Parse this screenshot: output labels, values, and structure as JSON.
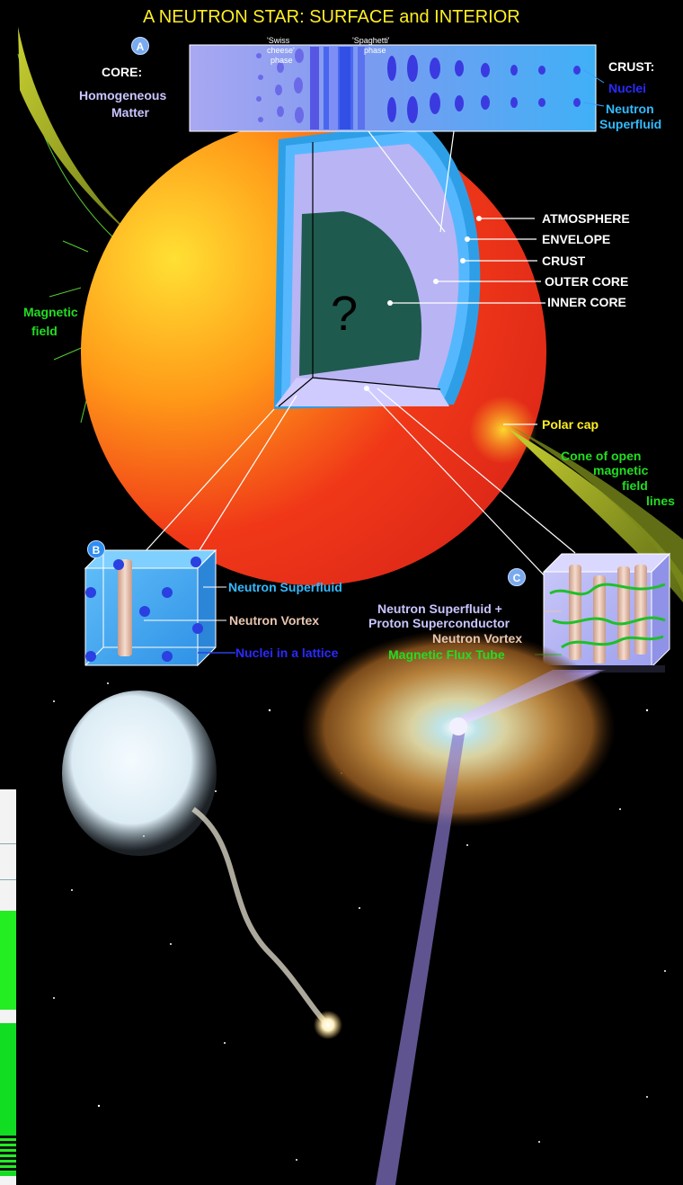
{
  "title": "A NEUTRON STAR:  SURFACE and INTERIOR",
  "badges": {
    "a": "A",
    "b": "B",
    "c": "C"
  },
  "core": {
    "heading": "CORE:",
    "line1": "Homogeneous",
    "line2": "Matter"
  },
  "crust_panel": {
    "heading": "CRUST:",
    "nuclei": "Nuclei",
    "neutron": "Neutron",
    "superfluid": "Superfluid"
  },
  "phases": {
    "swiss_1": "'Swiss",
    "swiss_2": "cheese'",
    "swiss_3": "phase",
    "spaghetti_1": "'Spaghetti'",
    "spaghetti_2": "phase"
  },
  "layers": [
    "ATMOSPHERE",
    "ENVELOPE",
    "CRUST",
    "OUTER CORE",
    "INNER CORE"
  ],
  "unknown_mark": "?",
  "magnetic_field": {
    "line1": "Magnetic",
    "line2": "field"
  },
  "polar_cap": "Polar cap",
  "cone": [
    "Cone of open",
    "magnetic",
    "field",
    "lines"
  ],
  "panel_b": {
    "superfluid": "Neutron Superfluid",
    "vortex": "Neutron Vortex",
    "lattice": "Nuclei in a lattice"
  },
  "panel_c": {
    "line1": "Neutron Superfluid  +",
    "line2": "Proton Superconductor",
    "vortex": "Neutron Vortex",
    "flux": "Magnetic Flux Tube"
  },
  "colors": {
    "background": "#000000",
    "star_hot": "#ffdd22",
    "star_cool": "#e02a18",
    "inner_core": "#1f5a4e",
    "outer_core": "#b9b4f3",
    "crust": "#55b8ff",
    "lavender_text": "#c9c5ff",
    "green_text": "#22dd22"
  }
}
